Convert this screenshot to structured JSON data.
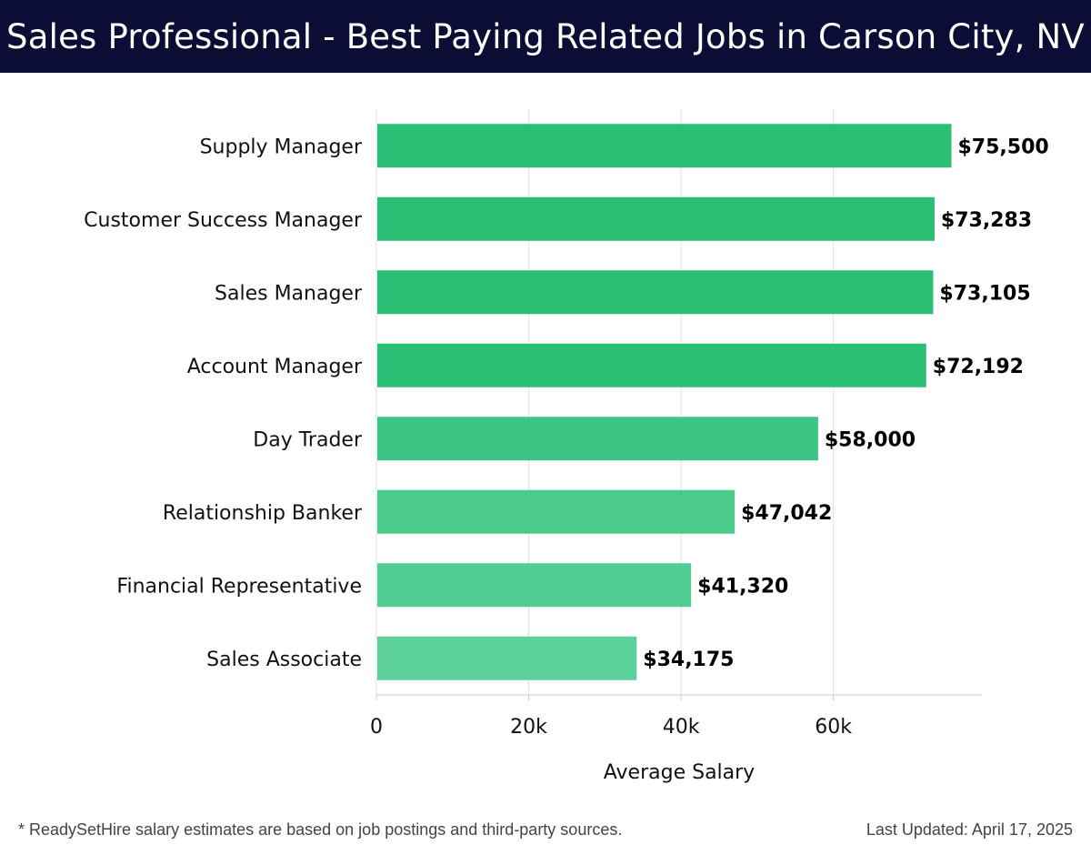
{
  "header": {
    "title": "Sales Professional - Best Paying Related Jobs in Carson City, NV"
  },
  "chart_data": {
    "type": "bar",
    "orientation": "horizontal",
    "categories": [
      "Supply Manager",
      "Customer Success Manager",
      "Sales Manager",
      "Account Manager",
      "Day Trader",
      "Relationship Banker",
      "Financial Representative",
      "Sales Associate"
    ],
    "values": [
      75500,
      73283,
      73105,
      72192,
      58000,
      47042,
      41320,
      34175
    ],
    "value_labels": [
      "$75,500",
      "$73,283",
      "$73,105",
      "$72,192",
      "$58,000",
      "$47,042",
      "$41,320",
      "$34,175"
    ],
    "xlabel": "Average Salary",
    "xlim": [
      0,
      79500
    ],
    "x_ticks": [
      0,
      20000,
      40000,
      60000
    ],
    "x_tick_labels": [
      "0",
      "20k",
      "40k",
      "60k"
    ],
    "grid": "vertical",
    "colors": [
      "#2bbf75",
      "#2bbf75",
      "#2bbf75",
      "#2bbf75",
      "#3cc583",
      "#4acb8c",
      "#52cd91",
      "#5bd09a"
    ]
  },
  "footer": {
    "note": "* ReadySetHire salary estimates are based on job postings and third-party sources.",
    "updated": "Last Updated: April 17, 2025"
  }
}
